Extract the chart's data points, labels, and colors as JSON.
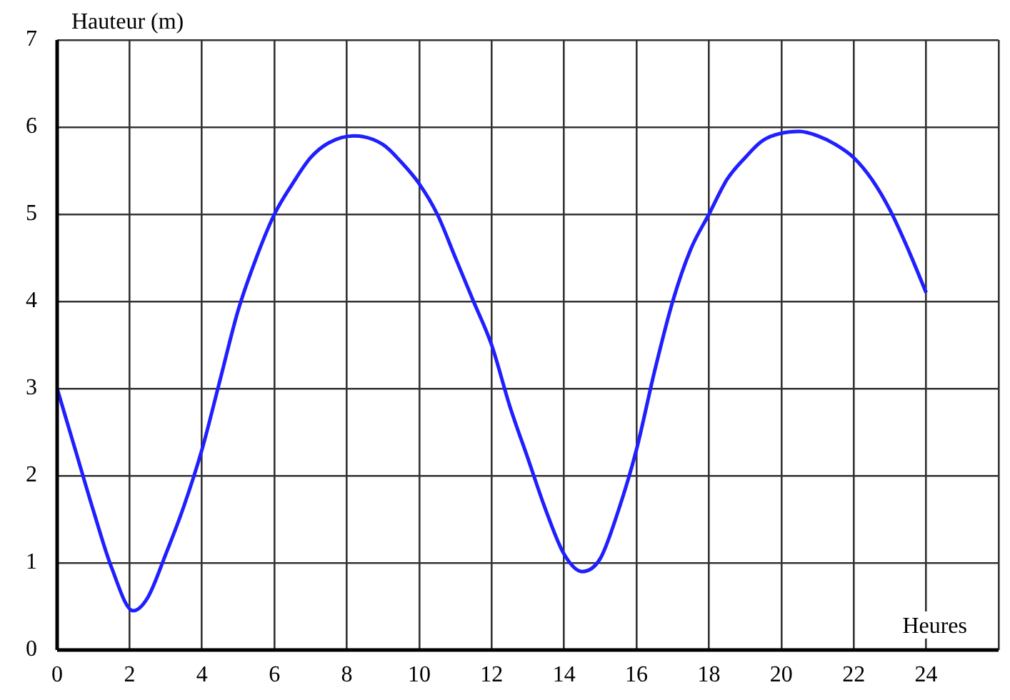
{
  "chart_data": {
    "type": "line",
    "xlabel": "Heures",
    "ylabel": "Hauteur (m)",
    "x": [
      0,
      0.5,
      1,
      1.5,
      2.1,
      2.5,
      3,
      3.5,
      4,
      4.5,
      5,
      5.5,
      6,
      6.5,
      7,
      7.5,
      8.2,
      9,
      9.5,
      10,
      10.5,
      11,
      11.5,
      12,
      12.5,
      13,
      13.5,
      14,
      14.5,
      15,
      15.5,
      16,
      16.5,
      17,
      17.5,
      18,
      18.5,
      19,
      19.5,
      20.5,
      21,
      21.5,
      22,
      22.5,
      23,
      23.5,
      24
    ],
    "series": [
      {
        "color": "#1f1fff",
        "values": [
          3.0,
          2.3,
          1.6,
          0.95,
          0.45,
          0.6,
          1.1,
          1.65,
          2.3,
          3.1,
          3.9,
          4.5,
          5.0,
          5.35,
          5.65,
          5.82,
          5.9,
          5.8,
          5.6,
          5.35,
          5.0,
          4.5,
          4.0,
          3.5,
          2.8,
          2.2,
          1.6,
          1.1,
          0.9,
          1.05,
          1.6,
          2.3,
          3.2,
          4.0,
          4.6,
          5.0,
          5.4,
          5.65,
          5.85,
          5.95,
          5.9,
          5.8,
          5.65,
          5.4,
          5.05,
          4.6,
          4.1
        ]
      }
    ],
    "xlim": [
      0,
      26
    ],
    "xticks": [
      0,
      2,
      4,
      6,
      8,
      10,
      12,
      14,
      16,
      18,
      20,
      22,
      24,
      {
        "value": 26,
        "label": null
      }
    ],
    "ylim": [
      0,
      7
    ],
    "yticks": [
      0,
      1,
      2,
      3,
      4,
      5,
      6,
      7
    ],
    "grid": true,
    "legend": false,
    "marker": "none",
    "line_style": "solid"
  }
}
